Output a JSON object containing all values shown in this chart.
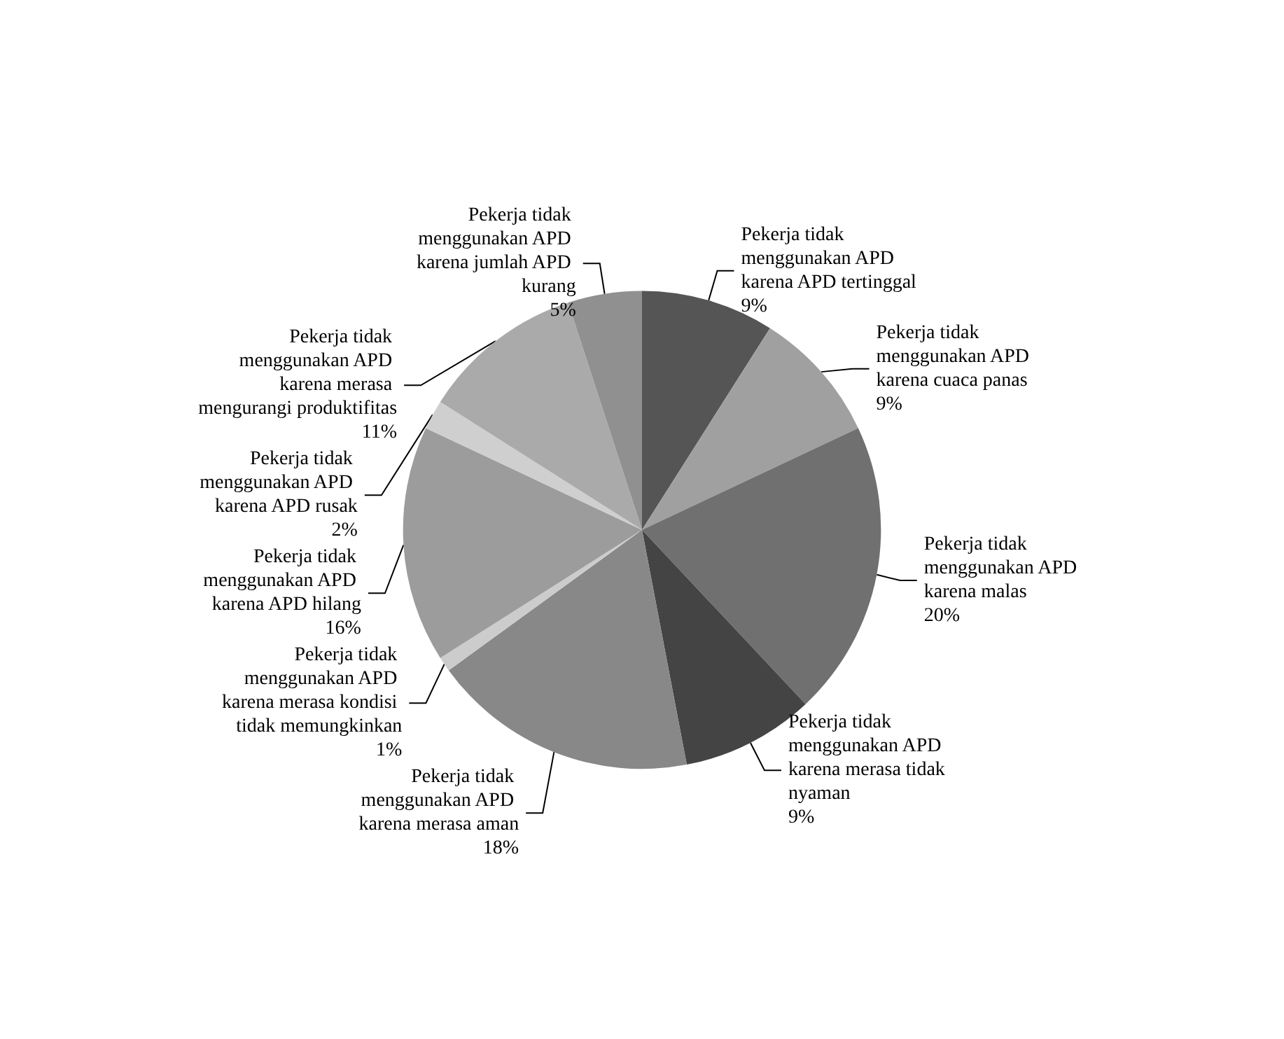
{
  "chart_data": {
    "type": "pie",
    "categories": [
      "Pekerja tidak menggunakan APD karena APD tertinggal",
      "Pekerja tidak menggunakan APD karena cuaca panas",
      "Pekerja tidak menggunakan APD karena malas",
      "Pekerja tidak menggunakan APD karena merasa tidak nyaman",
      "Pekerja tidak menggunakan APD karena merasa aman",
      "Pekerja tidak menggunakan APD karena merasa kondisi tidak memungkinkan",
      "Pekerja tidak menggunakan APD karena APD hilang",
      "Pekerja tidak menggunakan APD karena APD rusak",
      "Pekerja tidak menggunakan APD karena merasa mengurangi produktifitas",
      "Pekerja tidak menggunakan APD karena jumlah APD kurang"
    ],
    "values": [
      9,
      9,
      20,
      9,
      18,
      1,
      16,
      2,
      11,
      5
    ],
    "value_labels": [
      "9%",
      "9%",
      "20%",
      "9%",
      "18%",
      "1%",
      "16%",
      "2%",
      "11%",
      "5%"
    ],
    "colors": [
      "#555555",
      "#a0a0a0",
      "#707070",
      "#444444",
      "#888888",
      "#cccccc",
      "#9c9c9c",
      "#cfcfcf",
      "#aaaaaa",
      "#909090"
    ],
    "legend": false
  }
}
